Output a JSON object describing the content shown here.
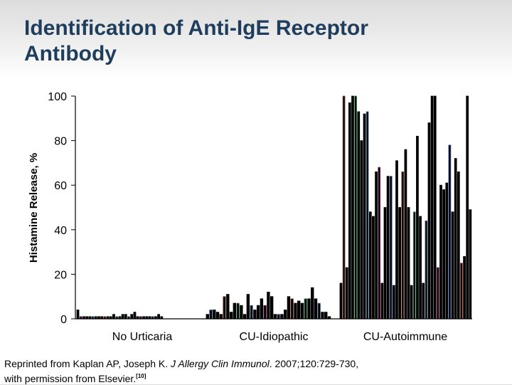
{
  "slide": {
    "title_line1": "Identification of Anti-IgE Receptor",
    "title_line2": "Antibody",
    "credit": {
      "pre": "Reprinted from Kaplan AP, Joseph K. ",
      "journal": "J Allergy Clin Immunol",
      "post": ". 2007;120:729-730, with permission from Elsevier.",
      "ref": "[10]"
    }
  },
  "chart_data": {
    "type": "bar",
    "title": "",
    "ylabel": "Histamine Release, %",
    "xlabel": "",
    "ylim": [
      0,
      100
    ],
    "yticks": [
      0,
      20,
      40,
      60,
      80,
      100
    ],
    "grid": false,
    "legend": "none",
    "groups": [
      {
        "name": "No Urticaria",
        "values": [
          4,
          1,
          1,
          1,
          1,
          1,
          1,
          1,
          1,
          1,
          1,
          1,
          2,
          1,
          1,
          2,
          2,
          1,
          2,
          3,
          1,
          1,
          1,
          1,
          1,
          1,
          1,
          2,
          1
        ]
      },
      {
        "name": "CU-Idiopathic",
        "values": [
          2,
          4,
          4,
          3,
          2,
          10,
          11,
          3,
          7,
          7,
          6,
          2,
          11,
          6,
          4,
          6,
          9,
          6,
          12,
          10,
          2,
          2,
          2,
          4,
          10,
          9,
          7,
          8,
          7,
          9,
          9,
          14,
          9,
          7,
          3,
          3,
          1
        ]
      },
      {
        "name": "CU-Autoimmune",
        "values": [
          16,
          100,
          23,
          97,
          100,
          100,
          93,
          80,
          92,
          93,
          48,
          46,
          66,
          68,
          16,
          50,
          64,
          64,
          15,
          71,
          50,
          66,
          76,
          50,
          15,
          48,
          82,
          46,
          16,
          44,
          88,
          100,
          100,
          23,
          60,
          58,
          61,
          78,
          48,
          72,
          66,
          25,
          28,
          100,
          49
        ]
      }
    ],
    "bar_color": "#000000",
    "bar_accent_colors": [
      "#3a5a9a",
      "#3f8f5a",
      "#8a2a6a",
      "#9a4a3a",
      "#5a7aa0"
    ]
  }
}
